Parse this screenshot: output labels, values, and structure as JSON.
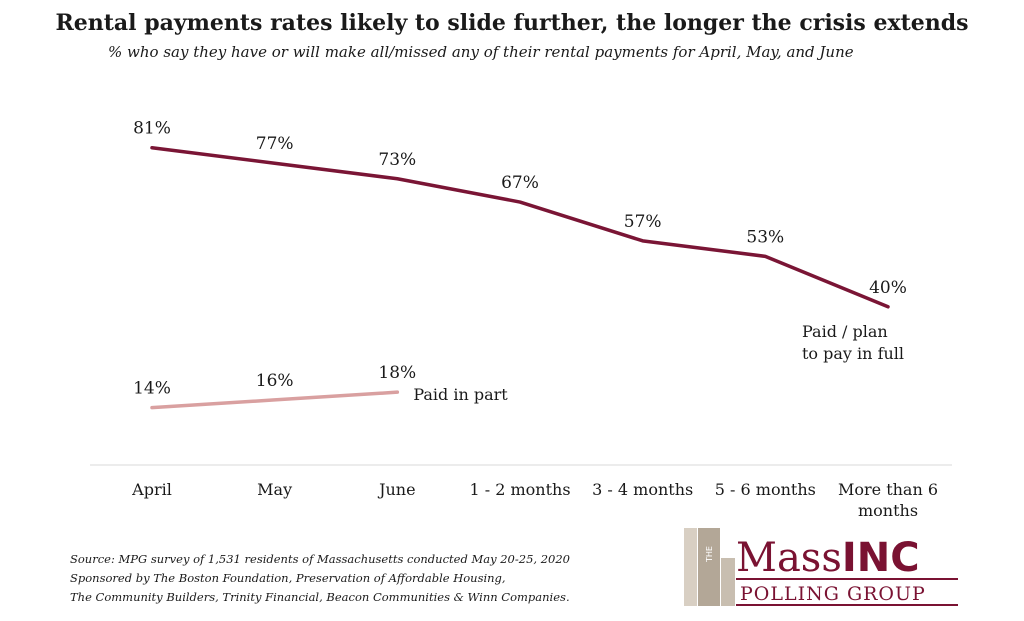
{
  "title": "Rental payments rates likely to slide further, the longer the crisis extends",
  "subtitle": "% who say they have or will make all/missed any of their rental payments for April, May, and June",
  "chart_data": {
    "type": "line",
    "title": "Rental payments rates likely to slide further, the longer the crisis extends",
    "subtitle": "% who say they have or will make all/missed any of their rental payments for April, May, and June",
    "categories": [
      "April",
      "May",
      "June",
      "1 - 2 months",
      "3 - 4 months",
      "5 - 6 months",
      "More than 6 months"
    ],
    "category_lines": [
      [
        "April"
      ],
      [
        "May"
      ],
      [
        "June"
      ],
      [
        "1 - 2 months"
      ],
      [
        "3 - 4 months"
      ],
      [
        "5 - 6 months"
      ],
      [
        "More than 6",
        "months"
      ]
    ],
    "series": [
      {
        "name": "Paid / plan to pay in full",
        "name_lines": [
          "Paid / plan",
          "to pay in full"
        ],
        "values": [
          81,
          77,
          73,
          67,
          57,
          53,
          40
        ],
        "labels": [
          "81%",
          "77%",
          "73%",
          "67%",
          "57%",
          "53%",
          "40%"
        ],
        "color": "#7a1535"
      },
      {
        "name": "Paid in part",
        "name_lines": [
          "Paid in part"
        ],
        "values": [
          14,
          16,
          18,
          null,
          null,
          null,
          null
        ],
        "labels": [
          "14%",
          "16%",
          "18%"
        ],
        "color": "#d9a0a0"
      }
    ],
    "ylim": [
      0,
      100
    ],
    "grid": false,
    "legend": "inline labels at line ends"
  },
  "source": {
    "line1": "Source: MPG survey of 1,531 residents of Massachusetts conducted May 20-25, 2020",
    "line2": "Sponsored by The Boston Foundation, Preservation of Affordable Housing,",
    "line3": "The Community Builders, Trinity Financial, Beacon Communities & Winn Companies."
  },
  "logo": {
    "the": "THE",
    "mass": "Mass",
    "inc": "INC",
    "polling": "POLLING GROUP",
    "color": "#7a1232"
  }
}
